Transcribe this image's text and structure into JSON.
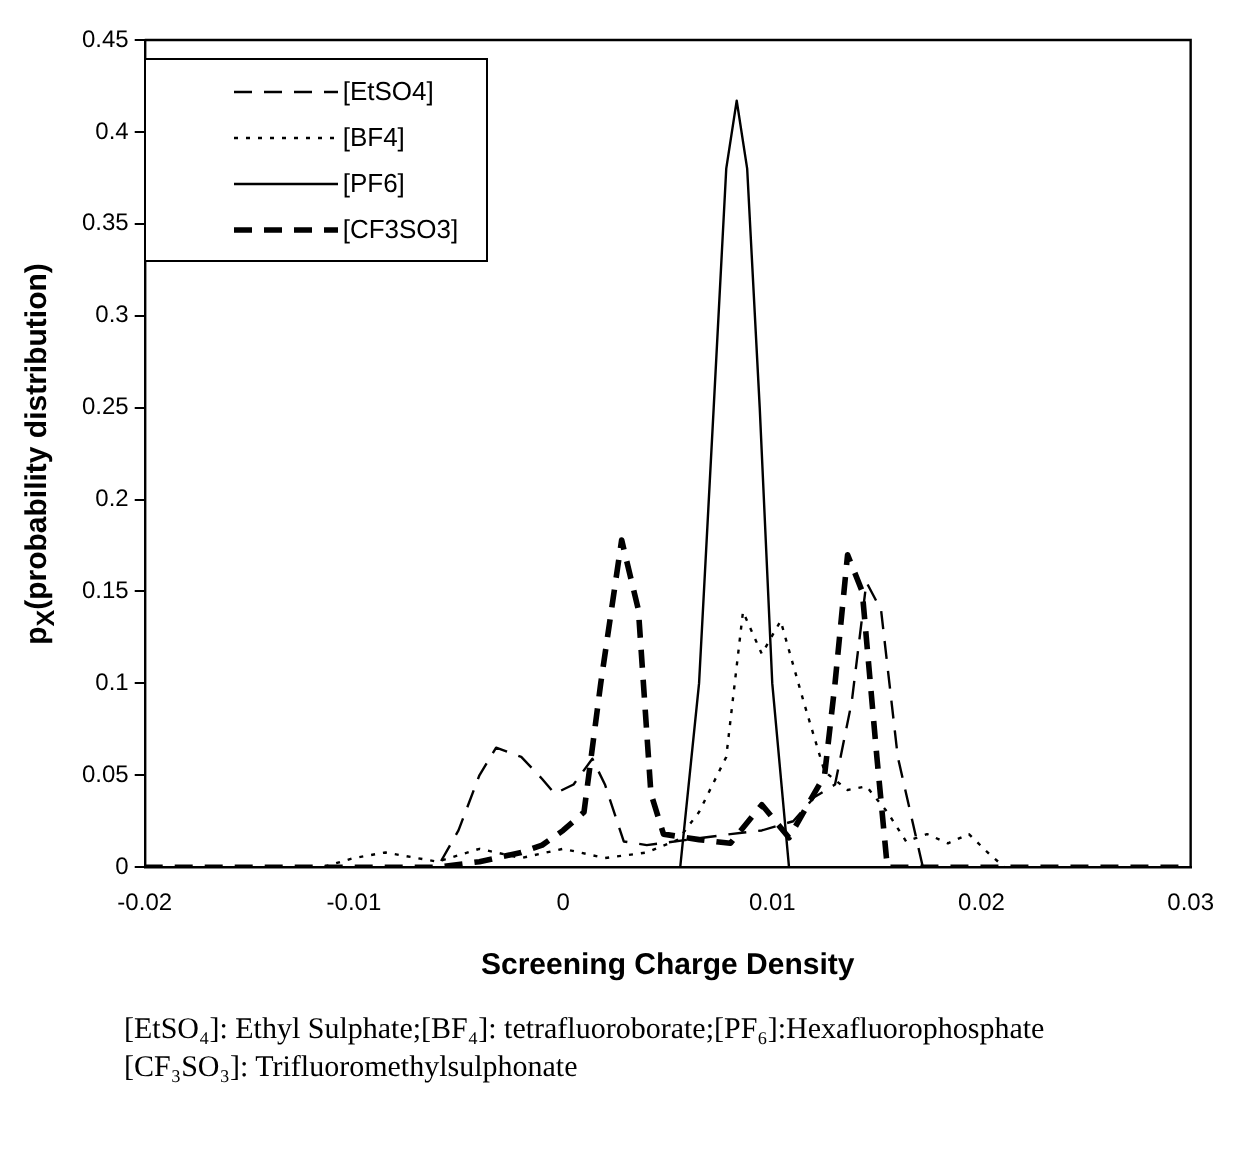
{
  "chart_data": {
    "type": "line",
    "xlabel": "Screening Charge Density",
    "ylabel": "p$_{X}$(probability distribution)",
    "annotations": [
      "[EtSO₄]: Ethyl Sulphate;[BF₄]: tetrafluoroborate;[PF₆]:Hexafluorophosphate",
      "[CF₃SO₃]: Trifluoromethylsulphonate"
    ],
    "xlim": [
      -0.02,
      0.03
    ],
    "xticks": [
      -0.02,
      -0.01,
      0,
      0.01,
      0.02,
      0.03
    ],
    "ylim": [
      0,
      0.45
    ],
    "yticks": [
      0,
      0.05,
      0.1,
      0.15,
      0.2,
      0.25,
      0.3,
      0.35,
      0.4,
      0.45
    ],
    "grid": false,
    "legend": "top left",
    "marker": "none",
    "series": [
      {
        "name": "[EtSO4]",
        "color": "#000000",
        "line_style": "dashed",
        "x": [
          -0.02,
          -0.006,
          -0.005,
          -0.004,
          -0.0032,
          -0.002,
          -0.001,
          -0.0004,
          0.0005,
          0.0014,
          0.002,
          0.0029,
          0.004,
          0.006,
          0.008,
          0.0095,
          0.011,
          0.012,
          0.013,
          0.0138,
          0.0145,
          0.0152,
          0.016,
          0.0172,
          0.03
        ],
        "values": [
          0,
          0,
          0.02,
          0.05,
          0.065,
          0.06,
          0.048,
          0.04,
          0.045,
          0.059,
          0.045,
          0.014,
          0.012,
          0.015,
          0.018,
          0.02,
          0.025,
          0.038,
          0.045,
          0.09,
          0.155,
          0.14,
          0.06,
          0,
          0
        ]
      },
      {
        "name": "[BF4]",
        "color": "#000000",
        "line_style": "dotted",
        "x": [
          -0.02,
          -0.0115,
          -0.01,
          -0.0085,
          -0.007,
          -0.006,
          -0.004,
          -0.002,
          0,
          0.002,
          0.004,
          0.0055,
          0.0065,
          0.0078,
          0.0086,
          0.0095,
          0.0104,
          0.0115,
          0.0125,
          0.0136,
          0.0145,
          0.0155,
          0.0164,
          0.0174,
          0.0184,
          0.0194,
          0.0203,
          0.0211,
          0.03
        ],
        "values": [
          0,
          0,
          0.005,
          0.008,
          0.005,
          0.003,
          0.01,
          0.005,
          0.01,
          0.005,
          0.008,
          0.015,
          0.03,
          0.06,
          0.139,
          0.116,
          0.134,
          0.09,
          0.052,
          0.042,
          0.044,
          0.03,
          0.014,
          0.018,
          0.013,
          0.018,
          0.008,
          0,
          0
        ]
      },
      {
        "name": "[PF6]",
        "color": "#000000",
        "line_style": "solid",
        "x": [
          -0.02,
          0.0056,
          0.0065,
          0.0072,
          0.0078,
          0.0083,
          0.0088,
          0.0094,
          0.01,
          0.0108,
          0.03
        ],
        "values": [
          0,
          0,
          0.1,
          0.25,
          0.38,
          0.417,
          0.38,
          0.25,
          0.1,
          0,
          0
        ]
      },
      {
        "name": "[CF3SO3]",
        "color": "#000000",
        "line_style": "dashed",
        "x": [
          -0.02,
          -0.006,
          -0.004,
          -0.002,
          -0.001,
          0,
          0.001,
          0.0018,
          0.0028,
          0.0036,
          0.0042,
          0.0048,
          0.0065,
          0.008,
          0.0095,
          0.0108,
          0.0125,
          0.013,
          0.0136,
          0.0143,
          0.015,
          0.0155,
          0.03
        ],
        "values": [
          0,
          0,
          0.003,
          0.008,
          0.012,
          0.02,
          0.03,
          0.1,
          0.178,
          0.14,
          0.04,
          0.018,
          0.015,
          0.013,
          0.034,
          0.016,
          0.05,
          0.1,
          0.17,
          0.15,
          0.06,
          0,
          0
        ]
      }
    ]
  }
}
